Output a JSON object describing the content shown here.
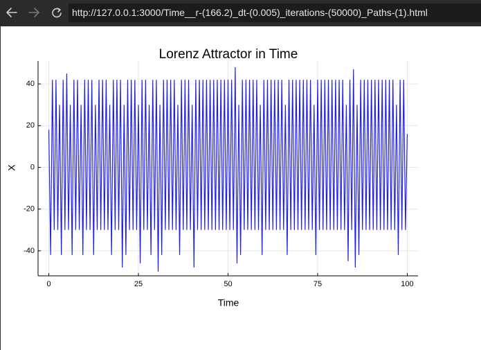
{
  "browser": {
    "url": "http://127.0.0.1:3000/Time__r-(166.2)_dt-(0.005)_iterations-(50000)_Paths-(1).html"
  },
  "chart_data": {
    "type": "line",
    "title": "Lorenz Attractor in Time",
    "x_label": "Time",
    "y_label": "X",
    "color": "#1f1fe6",
    "grid": true,
    "xlim": [
      -3,
      103
    ],
    "ylim": [
      -52,
      51
    ],
    "xticks": [
      0,
      25,
      50,
      75,
      100
    ],
    "yticks": [
      -40,
      -20,
      0,
      20,
      40
    ],
    "x": [
      0,
      0.5,
      1,
      1.5,
      2,
      2.5,
      3,
      3.5,
      4,
      4.5,
      5,
      5.5,
      6,
      6.5,
      7,
      7.5,
      8,
      8.5,
      9,
      9.5,
      10,
      10.5,
      11,
      11.5,
      12,
      12.5,
      13,
      13.5,
      14,
      14.5,
      15,
      15.5,
      16,
      16.5,
      17,
      17.5,
      18,
      18.5,
      19,
      19.5,
      20,
      20.5,
      21,
      21.5,
      22,
      22.5,
      23,
      23.5,
      24,
      24.5,
      25,
      25.5,
      26,
      26.5,
      27,
      27.5,
      28,
      28.5,
      29,
      29.5,
      30,
      30.5,
      31,
      31.5,
      32,
      32.5,
      33,
      33.5,
      34,
      34.5,
      35,
      35.5,
      36,
      36.5,
      37,
      37.5,
      38,
      38.5,
      39,
      39.5,
      40,
      40.5,
      41,
      41.5,
      42,
      42.5,
      43,
      43.5,
      44,
      44.5,
      45,
      45.5,
      46,
      46.5,
      47,
      47.5,
      48,
      48.5,
      49,
      49.5,
      50,
      50.5,
      51,
      51.5,
      52,
      52.5,
      53,
      53.5,
      54,
      54.5,
      55,
      55.5,
      56,
      56.5,
      57,
      57.5,
      58,
      58.5,
      59,
      59.5,
      60,
      60.5,
      61,
      61.5,
      62,
      62.5,
      63,
      63.5,
      64,
      64.5,
      65,
      65.5,
      66,
      66.5,
      67,
      67.5,
      68,
      68.5,
      69,
      69.5,
      70,
      70.5,
      71,
      71.5,
      72,
      72.5,
      73,
      73.5,
      74,
      74.5,
      75,
      75.5,
      76,
      76.5,
      77,
      77.5,
      78,
      78.5,
      79,
      79.5,
      80,
      80.5,
      81,
      81.5,
      82,
      82.5,
      83,
      83.5,
      84,
      84.5,
      85,
      85.5,
      86,
      86.5,
      87,
      87.5,
      88,
      88.5,
      89,
      89.5,
      90,
      90.5,
      91,
      91.5,
      92,
      92.5,
      93,
      93.5,
      94,
      94.5,
      95,
      95.5,
      96,
      96.5,
      97,
      97.5,
      98,
      98.5,
      99,
      99.5,
      100
    ],
    "values": [
      18,
      -42,
      42,
      -30,
      42,
      -30,
      30,
      -42,
      42,
      -30,
      45,
      -30,
      30,
      -42,
      42,
      -30,
      42,
      -30,
      30,
      -42,
      42,
      -30,
      42,
      -30,
      42,
      -42,
      30,
      -30,
      42,
      -30,
      42,
      -30,
      42,
      -30,
      30,
      -42,
      42,
      -30,
      42,
      -30,
      42,
      -48,
      30,
      -42,
      42,
      -30,
      42,
      -30,
      42,
      -30,
      30,
      -46,
      42,
      -30,
      42,
      -30,
      30,
      -42,
      42,
      -30,
      42,
      -50,
      30,
      -42,
      42,
      -30,
      42,
      -30,
      42,
      -30,
      42,
      -30,
      30,
      -42,
      42,
      -30,
      42,
      -30,
      42,
      -30,
      30,
      -48,
      42,
      -30,
      42,
      -30,
      42,
      -30,
      42,
      -30,
      42,
      -30,
      42,
      -30,
      42,
      -30,
      42,
      -30,
      42,
      -30,
      42,
      -30,
      42,
      -30,
      48,
      -46,
      30,
      -42,
      42,
      -30,
      42,
      -30,
      42,
      -30,
      42,
      -30,
      42,
      -30,
      30,
      -42,
      42,
      -30,
      42,
      -30,
      42,
      -30,
      42,
      -30,
      42,
      -30,
      42,
      -30,
      30,
      -42,
      42,
      -30,
      42,
      -30,
      42,
      -30,
      42,
      -30,
      42,
      -30,
      42,
      -30,
      42,
      -30,
      30,
      -42,
      42,
      -30,
      42,
      -30,
      42,
      -30,
      42,
      -30,
      42,
      -30,
      42,
      -30,
      42,
      -30,
      42,
      -30,
      30,
      -45,
      42,
      -30,
      47,
      -48,
      30,
      -42,
      42,
      -30,
      42,
      -30,
      42,
      -30,
      42,
      -30,
      42,
      -30,
      42,
      -30,
      42,
      -30,
      42,
      -30,
      42,
      -30,
      42,
      -30,
      30,
      -42,
      42,
      -30,
      42,
      -30,
      16
    ]
  }
}
